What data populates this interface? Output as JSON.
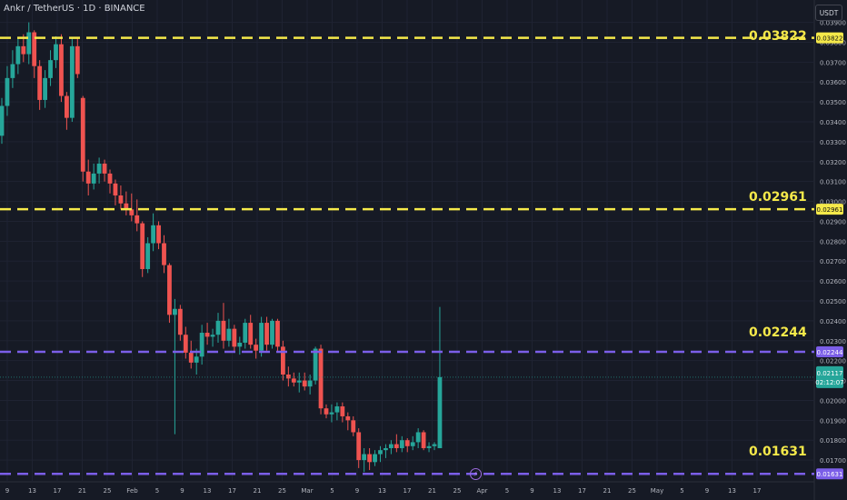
{
  "header": {
    "symbol_title": "Ankr / TetherUS · 1D · BINANCE",
    "currency": "USDT"
  },
  "levels": [
    {
      "label": "0.03822",
      "value": 0.03822,
      "color": "#f5e94a",
      "label_y": 32
    },
    {
      "label": "0.02961",
      "value": 0.02961,
      "color": "#f5e94a",
      "label_y": 209
    },
    {
      "label": "0.02244",
      "value": 0.02244,
      "color": "#7b5ee8",
      "label_y": 358
    },
    {
      "label": "0.01631",
      "value": 0.01631,
      "color": "#7b5ee8",
      "label_y": 489
    }
  ],
  "current": {
    "price": "0.02117",
    "countdown": "02:12:07",
    "value": 0.02117,
    "color": "#26a69a"
  },
  "colors": {
    "up": "#26a69a",
    "down": "#ef5350",
    "grid": "#1f2332",
    "axis_text": "#b2b5be",
    "level_yellow": "#f5e94a",
    "level_purple": "#7b5ee8"
  },
  "chart_data": {
    "type": "candlestick",
    "title": "Ankr / TetherUS · 1D · BINANCE",
    "y_axis": {
      "min": 0.016,
      "max": 0.0393,
      "ticks": [
        "0.03900",
        "0.03800",
        "0.03700",
        "0.03600",
        "0.03500",
        "0.03400",
        "0.03300",
        "0.03200",
        "0.03100",
        "0.03000",
        "0.02900",
        "0.02800",
        "0.02700",
        "0.02600",
        "0.02500",
        "0.02400",
        "0.02300",
        "0.02200",
        "0.02100",
        "0.02000",
        "0.01900",
        "0.01800",
        "0.01700"
      ]
    },
    "x_axis_ticks": [
      "9",
      "13",
      "17",
      "21",
      "25",
      "Feb",
      "5",
      "9",
      "13",
      "17",
      "21",
      "25",
      "Mar",
      "5",
      "9",
      "13",
      "17",
      "21",
      "25",
      "Apr",
      "5",
      "9",
      "13",
      "17",
      "21",
      "25",
      "May",
      "5",
      "9",
      "13",
      "17"
    ],
    "horizontal_levels": [
      0.03822,
      0.02961,
      0.02244,
      0.01631
    ],
    "candles_ohlc": [
      [
        0.0333,
        0.0352,
        0.0329,
        0.0348
      ],
      [
        0.0348,
        0.0368,
        0.0343,
        0.0362
      ],
      [
        0.0362,
        0.0376,
        0.0357,
        0.0369
      ],
      [
        0.0369,
        0.0382,
        0.0364,
        0.0378
      ],
      [
        0.0378,
        0.0384,
        0.037,
        0.0374
      ],
      [
        0.0374,
        0.039,
        0.0369,
        0.0385
      ],
      [
        0.0385,
        0.0386,
        0.0362,
        0.0368
      ],
      [
        0.0368,
        0.0371,
        0.0346,
        0.0351
      ],
      [
        0.0351,
        0.0366,
        0.0347,
        0.0362
      ],
      [
        0.0362,
        0.0376,
        0.0358,
        0.0371
      ],
      [
        0.0371,
        0.0383,
        0.0367,
        0.0379
      ],
      [
        0.0379,
        0.0384,
        0.035,
        0.0353
      ],
      [
        0.0353,
        0.0355,
        0.0336,
        0.0342
      ],
      [
        0.0342,
        0.0382,
        0.034,
        0.0378
      ],
      [
        0.0378,
        0.0382,
        0.0362,
        0.0364
      ],
      [
        0.0352,
        0.0353,
        0.031,
        0.0315
      ],
      [
        0.0315,
        0.0321,
        0.0303,
        0.0309
      ],
      [
        0.0309,
        0.0319,
        0.0306,
        0.0314
      ],
      [
        0.0314,
        0.0322,
        0.0309,
        0.0319
      ],
      [
        0.0319,
        0.0321,
        0.031,
        0.0314
      ],
      [
        0.0314,
        0.0316,
        0.0304,
        0.0309
      ],
      [
        0.0309,
        0.0311,
        0.0298,
        0.0303
      ],
      [
        0.0303,
        0.0308,
        0.0296,
        0.0299
      ],
      [
        0.0299,
        0.0305,
        0.0293,
        0.0296
      ],
      [
        0.0296,
        0.0304,
        0.029,
        0.0293
      ],
      [
        0.0293,
        0.0301,
        0.0285,
        0.0289
      ],
      [
        0.0289,
        0.029,
        0.0262,
        0.0266
      ],
      [
        0.0266,
        0.0282,
        0.0264,
        0.0279
      ],
      [
        0.0279,
        0.0294,
        0.0275,
        0.0288
      ],
      [
        0.0288,
        0.029,
        0.0276,
        0.0279
      ],
      [
        0.0279,
        0.0283,
        0.0264,
        0.0268
      ],
      [
        0.0268,
        0.0269,
        0.0239,
        0.0243
      ],
      [
        0.0243,
        0.0251,
        0.0183,
        0.0246
      ],
      [
        0.0246,
        0.0248,
        0.023,
        0.0233
      ],
      [
        0.0233,
        0.0237,
        0.0221,
        0.0224
      ],
      [
        0.0224,
        0.023,
        0.0216,
        0.0219
      ],
      [
        0.0219,
        0.0226,
        0.0213,
        0.0222
      ],
      [
        0.0222,
        0.0238,
        0.0218,
        0.0234
      ],
      [
        0.0234,
        0.0239,
        0.0228,
        0.0232
      ],
      [
        0.0232,
        0.0236,
        0.0227,
        0.0233
      ],
      [
        0.0233,
        0.0244,
        0.0229,
        0.024
      ],
      [
        0.024,
        0.0249,
        0.0226,
        0.023
      ],
      [
        0.023,
        0.0241,
        0.0227,
        0.0236
      ],
      [
        0.0236,
        0.0238,
        0.0224,
        0.0227
      ],
      [
        0.0227,
        0.0232,
        0.0223,
        0.0229
      ],
      [
        0.0229,
        0.0241,
        0.0226,
        0.0239
      ],
      [
        0.0239,
        0.0243,
        0.0226,
        0.0228
      ],
      [
        0.0228,
        0.0231,
        0.0221,
        0.0225
      ],
      [
        0.0225,
        0.0242,
        0.0222,
        0.0239
      ],
      [
        0.0239,
        0.0242,
        0.0225,
        0.0228
      ],
      [
        0.0228,
        0.0241,
        0.0226,
        0.024
      ],
      [
        0.024,
        0.0241,
        0.0224,
        0.0227
      ],
      [
        0.0227,
        0.023,
        0.021,
        0.0213
      ],
      [
        0.0213,
        0.0217,
        0.0207,
        0.0211
      ],
      [
        0.0211,
        0.0214,
        0.0207,
        0.0209
      ],
      [
        0.0209,
        0.0214,
        0.0204,
        0.021
      ],
      [
        0.021,
        0.0214,
        0.0205,
        0.0207
      ],
      [
        0.0207,
        0.0213,
        0.0203,
        0.021
      ],
      [
        0.021,
        0.0227,
        0.0208,
        0.0226
      ],
      [
        0.0226,
        0.0228,
        0.0193,
        0.0196
      ],
      [
        0.0196,
        0.0198,
        0.0191,
        0.0193
      ],
      [
        0.0193,
        0.0198,
        0.0189,
        0.0194
      ],
      [
        0.0194,
        0.0199,
        0.019,
        0.0197
      ],
      [
        0.0197,
        0.0199,
        0.0189,
        0.0192
      ],
      [
        0.0192,
        0.0194,
        0.0185,
        0.019
      ],
      [
        0.019,
        0.0192,
        0.0182,
        0.0184
      ],
      [
        0.0184,
        0.0186,
        0.0166,
        0.017
      ],
      [
        0.017,
        0.0176,
        0.0164,
        0.0173
      ],
      [
        0.0173,
        0.0176,
        0.0165,
        0.0169
      ],
      [
        0.0169,
        0.0175,
        0.0167,
        0.0173
      ],
      [
        0.0173,
        0.0177,
        0.0169,
        0.0175
      ],
      [
        0.0175,
        0.0178,
        0.0171,
        0.0176
      ],
      [
        0.0176,
        0.018,
        0.0173,
        0.0178
      ],
      [
        0.0178,
        0.0183,
        0.0174,
        0.0176
      ],
      [
        0.0176,
        0.0182,
        0.0174,
        0.018
      ],
      [
        0.018,
        0.0181,
        0.0174,
        0.0177
      ],
      [
        0.0177,
        0.0182,
        0.0175,
        0.0179
      ],
      [
        0.0179,
        0.0186,
        0.0176,
        0.0184
      ],
      [
        0.0184,
        0.0185,
        0.0175,
        0.0176
      ],
      [
        0.0176,
        0.0179,
        0.0174,
        0.0177
      ],
      [
        0.0177,
        0.0179,
        0.0175,
        0.0178
      ],
      [
        0.0176,
        0.0247,
        0.0176,
        0.02117
      ]
    ]
  }
}
